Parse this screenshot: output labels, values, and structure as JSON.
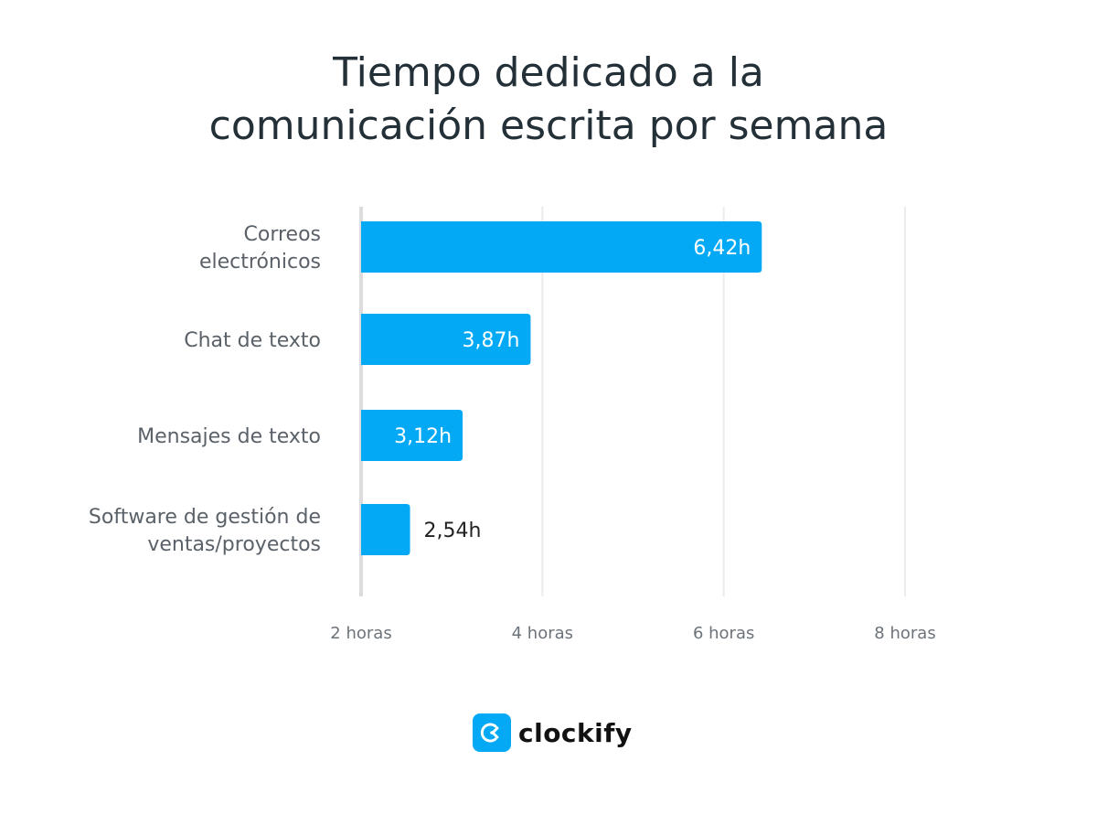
{
  "chart_data": {
    "type": "bar",
    "orientation": "horizontal",
    "title_lines": [
      "Tiempo dedicado a la",
      "comunicación escrita por semana"
    ],
    "categories": [
      [
        "Correos",
        "electrónicos"
      ],
      [
        "Chat de texto"
      ],
      [
        "Mensajes de texto"
      ],
      [
        "Software de gestión de",
        "ventas/proyectos"
      ]
    ],
    "values": [
      6.42,
      3.87,
      3.12,
      2.54
    ],
    "value_labels": [
      "6,42h",
      "3,87h",
      "3,12h",
      "2,54h"
    ],
    "xticks": [
      2,
      4,
      6,
      8
    ],
    "xtick_labels": [
      "2 horas",
      "4 horas",
      "6 horas",
      "8 horas"
    ],
    "xlim": [
      2,
      8
    ],
    "grid": true,
    "bar_color": "#03a9f4"
  },
  "brand": {
    "name": "clockify",
    "color": "#03a9f4"
  }
}
